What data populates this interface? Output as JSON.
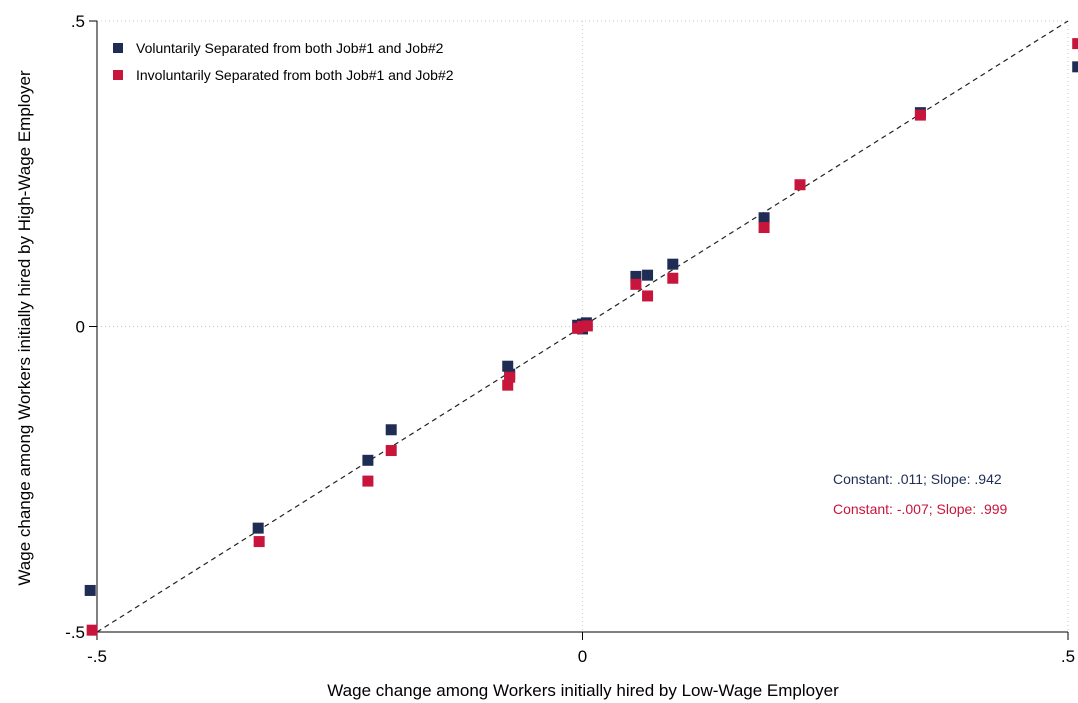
{
  "chart_data": {
    "type": "scatter",
    "title": "",
    "xlabel": "Wage change among Workers initially hired by Low-Wage Employer",
    "ylabel": "Wage change among Workers initially hired by High-Wage Employer",
    "xlim": [
      -0.5,
      0.5
    ],
    "ylim": [
      -0.5,
      0.5
    ],
    "xticks": [
      {
        "value": -0.5,
        "label": "-.5"
      },
      {
        "value": 0,
        "label": "0"
      },
      {
        "value": 0.5,
        "label": ".5"
      }
    ],
    "yticks": [
      {
        "value": -0.5,
        "label": "-.5"
      },
      {
        "value": 0,
        "label": "0"
      },
      {
        "value": 0.5,
        "label": ".5"
      }
    ],
    "grid": true,
    "legend_position": "top-left",
    "reference_line": {
      "style": "dashed",
      "from": [
        -0.5,
        -0.5
      ],
      "to": [
        0.5,
        0.5
      ]
    },
    "series": [
      {
        "name": "Voluntarily Separated from both Job#1 and Job#2",
        "color": "#1f2d55",
        "marker": "square",
        "points": [
          [
            -0.507,
            -0.432
          ],
          [
            -0.334,
            -0.33
          ],
          [
            -0.221,
            -0.219
          ],
          [
            -0.197,
            -0.169
          ],
          [
            -0.077,
            -0.065
          ],
          [
            -0.075,
            -0.078
          ],
          [
            -0.005,
            0.002
          ],
          [
            0.0,
            0.004
          ],
          [
            0.004,
            0.006
          ],
          [
            0.0,
            -0.004
          ],
          [
            0.055,
            0.082
          ],
          [
            0.067,
            0.084
          ],
          [
            0.093,
            0.102
          ],
          [
            0.187,
            0.178
          ],
          [
            0.348,
            0.35
          ],
          [
            0.51,
            0.425
          ]
        ]
      },
      {
        "name": "Involuntarily Separated from both Job#1 and Job#2",
        "color": "#c8153c",
        "marker": "square",
        "points": [
          [
            -0.505,
            -0.497
          ],
          [
            -0.333,
            -0.352
          ],
          [
            -0.221,
            -0.253
          ],
          [
            -0.197,
            -0.203
          ],
          [
            -0.077,
            -0.096
          ],
          [
            -0.075,
            -0.083
          ],
          [
            -0.005,
            -0.003
          ],
          [
            0.0,
            0.0
          ],
          [
            0.005,
            0.001
          ],
          [
            0.055,
            0.069
          ],
          [
            0.067,
            0.05
          ],
          [
            0.093,
            0.079
          ],
          [
            0.187,
            0.162
          ],
          [
            0.224,
            0.232
          ],
          [
            0.348,
            0.346
          ],
          [
            0.51,
            0.463
          ]
        ]
      }
    ],
    "annotations": [
      {
        "text": "Constant: .011; Slope: .942",
        "color": "#1f2d55"
      },
      {
        "text": "Constant: -.007; Slope: .999",
        "color": "#c8153c"
      }
    ]
  }
}
